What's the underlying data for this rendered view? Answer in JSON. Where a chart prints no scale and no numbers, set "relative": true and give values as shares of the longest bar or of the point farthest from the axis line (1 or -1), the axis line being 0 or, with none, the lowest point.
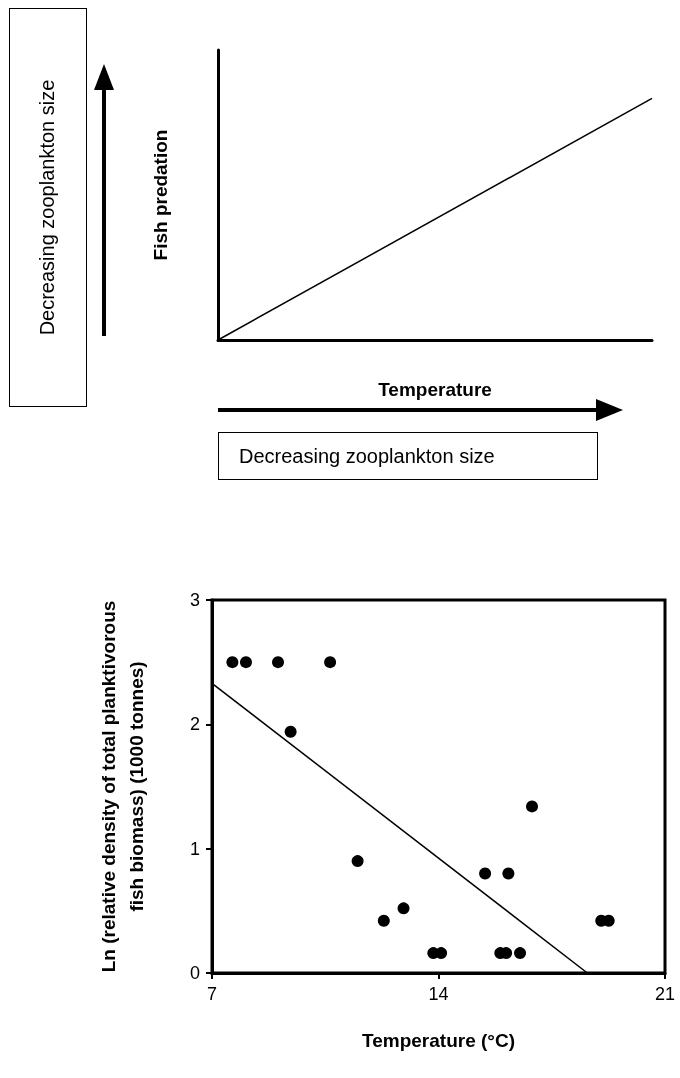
{
  "chart_data": [
    {
      "type": "line",
      "relative": true,
      "categories": [
        null,
        null
      ],
      "values": [
        0,
        1
      ],
      "color": "#000000",
      "xlabel": "Temperature",
      "ylabel": "Fish predation",
      "marker": "none",
      "grid": false,
      "annotations": [
        "Decreasing zooplankton size",
        "Decreasing zooplankton size"
      ]
    },
    {
      "type": "scatter",
      "xlabel": "Temperature (°C)",
      "ylabel": "Ln (relative density of total planktivorous\nfish biomass) (1000 tonnes)",
      "xlim": [
        7,
        21
      ],
      "xticks": [
        7,
        14,
        21
      ],
      "ylim": [
        0,
        3
      ],
      "yticks": [
        0,
        1,
        2,
        3
      ],
      "grid": false,
      "series": [
        {
          "type": "scatter",
          "marker": "circle",
          "color": "#000000",
          "x": [
            7.63,
            8.05,
            9.04,
            10.65,
            9.43,
            11.5,
            12.31,
            12.92,
            13.84,
            14.08,
            15.44,
            15.91,
            16.09,
            16.16,
            16.52,
            16.89,
            19.03,
            19.26
          ],
          "values": [
            2.5,
            2.5,
            2.5,
            2.5,
            1.94,
            0.9,
            0.42,
            0.52,
            0.16,
            0.16,
            0.8,
            0.16,
            0.16,
            0.8,
            0.16,
            1.34,
            0.42,
            0.42
          ]
        },
        {
          "type": "line",
          "marker": "none",
          "color": "#000000",
          "x": [
            7,
            18.6
          ],
          "values": [
            2.33,
            0
          ]
        }
      ]
    }
  ]
}
